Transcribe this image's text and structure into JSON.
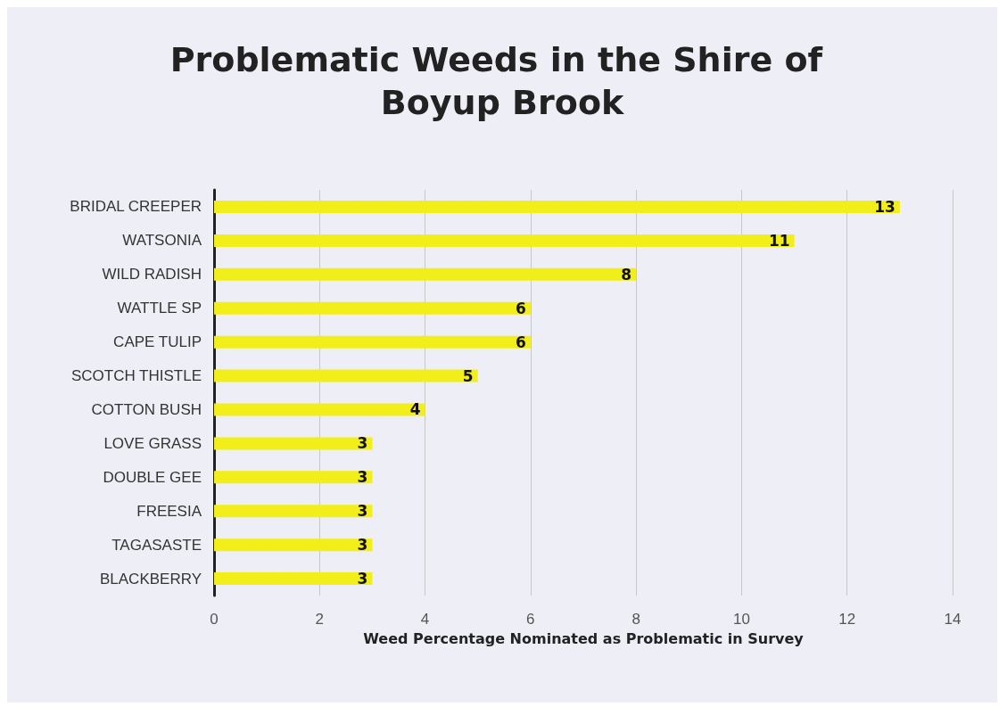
{
  "chart_data": {
    "type": "bar",
    "orientation": "horizontal",
    "title": "Problematic Weeds in the Shire of Boyup Brook",
    "xlabel": "Weed Percentage Nominated as Problematic in Survey",
    "categories": [
      "BRIDAL CREEPER",
      "WATSONIA",
      "WILD RADISH",
      "WATTLE SP",
      "CAPE TULIP",
      "SCOTCH THISTLE",
      "COTTON BUSH",
      "LOVE GRASS",
      "DOUBLE GEE",
      "FREESIA",
      "TAGASASTE",
      "BLACKBERRY"
    ],
    "values": [
      13,
      11,
      8,
      6,
      6,
      5,
      4,
      3,
      3,
      3,
      3,
      3
    ],
    "color": "#f2ee1a",
    "xlim": [
      0,
      14
    ],
    "xticks": [
      0,
      2,
      4,
      6,
      8,
      10,
      12,
      14
    ],
    "grid": "x",
    "data_labels": true
  }
}
